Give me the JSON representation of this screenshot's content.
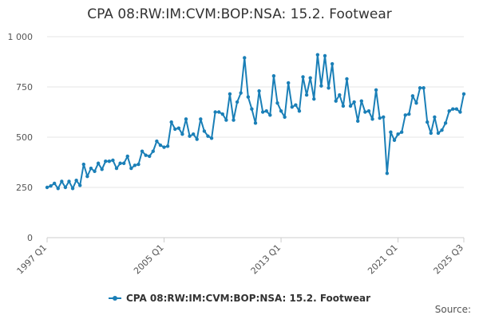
{
  "chart_data": {
    "type": "line",
    "title": "CPA 08:RW:IM:CVM:BOP:NSA: 15.2. Footwear",
    "xlabel": "",
    "ylabel": "",
    "ylim": [
      0,
      1000
    ],
    "yticks": [
      0,
      250,
      500,
      750,
      1000
    ],
    "ytick_labels": [
      "0",
      "250",
      "500",
      "750",
      "1 000"
    ],
    "xticks": [
      "1997 Q1",
      "2005 Q1",
      "2013 Q1",
      "2021 Q1",
      "2025 Q3"
    ],
    "grid": true,
    "legend_position": "bottom",
    "color": "#1a7fb7",
    "series": [
      {
        "name": "CPA 08:RW:IM:CVM:BOP:NSA: 15.2. Footwear",
        "x": [
          "1997 Q1",
          "1997 Q2",
          "1997 Q3",
          "1997 Q4",
          "1998 Q1",
          "1998 Q2",
          "1998 Q3",
          "1998 Q4",
          "1999 Q1",
          "1999 Q2",
          "1999 Q3",
          "1999 Q4",
          "2000 Q1",
          "2000 Q2",
          "2000 Q3",
          "2000 Q4",
          "2001 Q1",
          "2001 Q2",
          "2001 Q3",
          "2001 Q4",
          "2002 Q1",
          "2002 Q2",
          "2002 Q3",
          "2002 Q4",
          "2003 Q1",
          "2003 Q2",
          "2003 Q3",
          "2003 Q4",
          "2004 Q1",
          "2004 Q2",
          "2004 Q3",
          "2004 Q4",
          "2005 Q1",
          "2005 Q2",
          "2005 Q3",
          "2005 Q4",
          "2006 Q1",
          "2006 Q2",
          "2006 Q3",
          "2006 Q4",
          "2007 Q1",
          "2007 Q2",
          "2007 Q3",
          "2007 Q4",
          "2008 Q1",
          "2008 Q2",
          "2008 Q3",
          "2008 Q4",
          "2009 Q1",
          "2009 Q2",
          "2009 Q3",
          "2009 Q4",
          "2010 Q1",
          "2010 Q2",
          "2010 Q3",
          "2010 Q4",
          "2011 Q1",
          "2011 Q2",
          "2011 Q3",
          "2011 Q4",
          "2012 Q1",
          "2012 Q2",
          "2012 Q3",
          "2012 Q4",
          "2013 Q1",
          "2013 Q2",
          "2013 Q3",
          "2013 Q4",
          "2014 Q1",
          "2014 Q2",
          "2014 Q3",
          "2014 Q4",
          "2015 Q1",
          "2015 Q2",
          "2015 Q3",
          "2015 Q4",
          "2016 Q1",
          "2016 Q2",
          "2016 Q3",
          "2016 Q4",
          "2017 Q1",
          "2017 Q2",
          "2017 Q3",
          "2017 Q4",
          "2018 Q1",
          "2018 Q2",
          "2018 Q3",
          "2018 Q4",
          "2019 Q1",
          "2019 Q2",
          "2019 Q3",
          "2019 Q4",
          "2020 Q1",
          "2020 Q2",
          "2020 Q3",
          "2020 Q4",
          "2021 Q1",
          "2021 Q2",
          "2021 Q3",
          "2021 Q4",
          "2022 Q1",
          "2022 Q2",
          "2022 Q3",
          "2022 Q4",
          "2023 Q1",
          "2023 Q2",
          "2023 Q3",
          "2023 Q4",
          "2024 Q1",
          "2024 Q2",
          "2024 Q3",
          "2024 Q4",
          "2025 Q1",
          "2025 Q2",
          "2025 Q3"
        ],
        "values": [
          250,
          257,
          270,
          245,
          280,
          250,
          280,
          245,
          285,
          260,
          365,
          305,
          345,
          330,
          370,
          340,
          380,
          380,
          385,
          345,
          370,
          370,
          405,
          345,
          360,
          365,
          430,
          410,
          405,
          430,
          480,
          460,
          450,
          455,
          575,
          540,
          545,
          515,
          590,
          505,
          515,
          490,
          590,
          530,
          505,
          495,
          625,
          625,
          615,
          585,
          715,
          585,
          675,
          720,
          895,
          700,
          640,
          570,
          730,
          625,
          630,
          610,
          805,
          670,
          630,
          600,
          770,
          650,
          660,
          630,
          800,
          710,
          795,
          690,
          910,
          755,
          905,
          745,
          865,
          680,
          710,
          655,
          790,
          655,
          675,
          580,
          680,
          625,
          630,
          590,
          735,
          595,
          600,
          320,
          525,
          485,
          515,
          525,
          610,
          615,
          705,
          670,
          745,
          745,
          575,
          520,
          600,
          520,
          535,
          570,
          630,
          640,
          640,
          625,
          715
        ]
      }
    ]
  },
  "legend": {
    "label": "CPA 08:RW:IM:CVM:BOP:NSA: 15.2. Footwear"
  },
  "source": {
    "label": "Source:"
  }
}
